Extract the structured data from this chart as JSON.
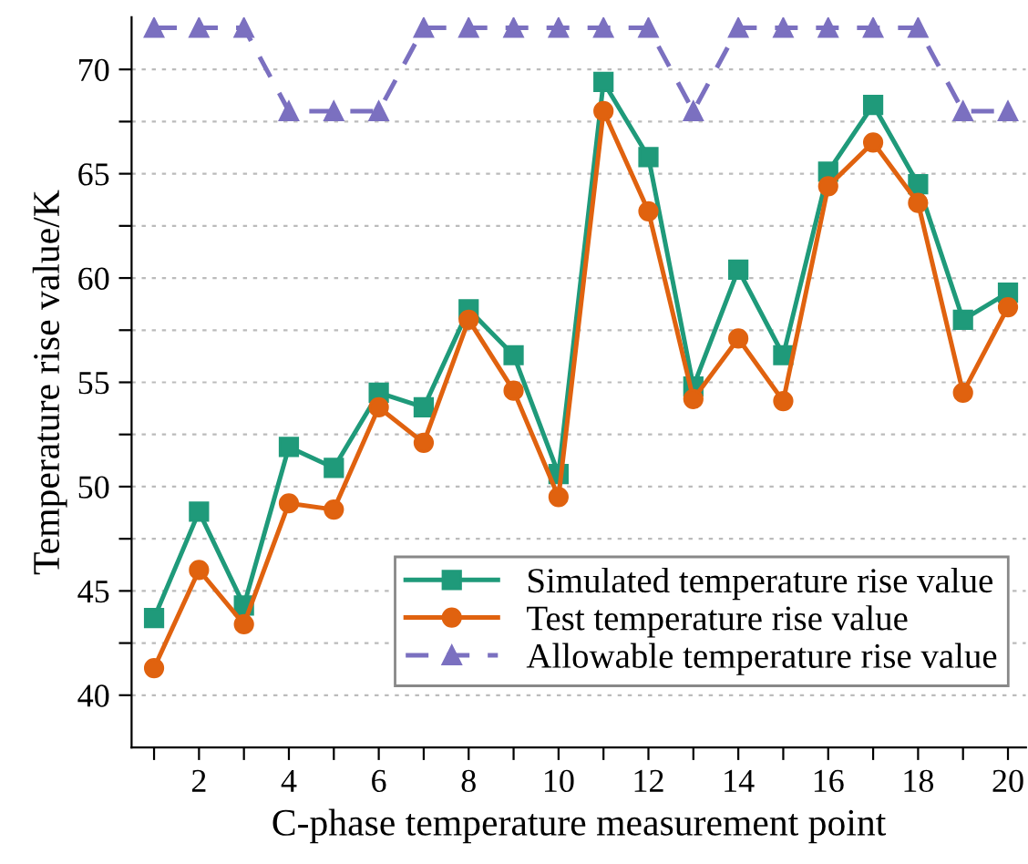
{
  "chart_data": {
    "type": "line",
    "xlabel": "C-phase temperature measurement point",
    "ylabel": "Temperature rise value/K",
    "x": [
      1,
      2,
      3,
      4,
      5,
      6,
      7,
      8,
      9,
      10,
      11,
      12,
      13,
      14,
      15,
      16,
      17,
      18,
      19,
      20
    ],
    "series": [
      {
        "name": "Simulated temperature rise value",
        "color": "#1f9a7a",
        "marker": "square",
        "line_style": "solid",
        "values": [
          43.7,
          48.8,
          44.3,
          51.9,
          50.9,
          54.5,
          53.8,
          58.5,
          56.3,
          50.6,
          69.4,
          65.8,
          54.8,
          60.4,
          56.3,
          65.1,
          68.3,
          64.5,
          58.0,
          59.3
        ]
      },
      {
        "name": "Test temperature rise value",
        "color": "#e0620f",
        "marker": "circle",
        "line_style": "solid",
        "values": [
          41.3,
          46.0,
          43.4,
          49.2,
          48.9,
          53.8,
          52.1,
          58.0,
          54.6,
          49.5,
          68.0,
          63.2,
          54.2,
          57.1,
          54.1,
          64.4,
          66.5,
          63.6,
          54.5,
          58.6
        ]
      },
      {
        "name": "Allowable temperature rise value",
        "color": "#7b70c0",
        "marker": "triangle",
        "line_style": "dashed",
        "values": [
          72,
          72,
          72,
          68,
          68,
          68,
          72,
          72,
          72,
          72,
          72,
          72,
          68,
          72,
          72,
          72,
          72,
          72,
          68,
          68
        ]
      }
    ],
    "xlim": [
      0.5,
      20.4
    ],
    "ylim": [
      37.5,
      72.5
    ],
    "xticks": [
      {
        "value": 1,
        "label": null
      },
      2,
      {
        "value": 3,
        "label": null
      },
      4,
      {
        "value": 5,
        "label": null
      },
      6,
      {
        "value": 7,
        "label": null
      },
      8,
      {
        "value": 9,
        "label": null
      },
      10,
      {
        "value": 11,
        "label": null
      },
      12,
      {
        "value": 13,
        "label": null
      },
      14,
      {
        "value": 15,
        "label": null
      },
      16,
      {
        "value": 17,
        "label": null
      },
      18,
      {
        "value": 19,
        "label": null
      },
      20
    ],
    "yticks": [
      40,
      {
        "value": 42.5,
        "label": null
      },
      45,
      {
        "value": 47.5,
        "label": null
      },
      50,
      {
        "value": 52.5,
        "label": null
      },
      55,
      {
        "value": 57.5,
        "label": null
      },
      60,
      {
        "value": 62.5,
        "label": null
      },
      65,
      {
        "value": 67.5,
        "label": null
      },
      70
    ],
    "grid": "y",
    "legend": "bottom right"
  }
}
